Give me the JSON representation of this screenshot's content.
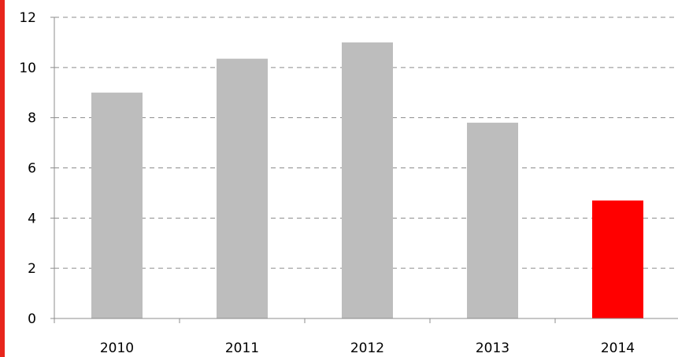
{
  "chart_data": {
    "type": "bar",
    "categories": [
      "2010",
      "2011",
      "2012",
      "2013",
      "2014"
    ],
    "values": [
      9.0,
      10.35,
      11.0,
      7.8,
      4.7
    ],
    "bar_colors": [
      "#bdbdbd",
      "#bdbdbd",
      "#bdbdbd",
      "#bdbdbd",
      "#ff0000"
    ],
    "ylim": [
      0,
      12
    ],
    "yticks": [
      "0",
      "2",
      "4",
      "6",
      "8",
      "10",
      "12"
    ],
    "grid": true,
    "grid_style": "dashed",
    "title": "",
    "xlabel": "",
    "ylabel": ""
  },
  "colors": {
    "left_edge": "#e8261c",
    "grid": "#8c8c8c",
    "axis": "#8c8c8c"
  }
}
